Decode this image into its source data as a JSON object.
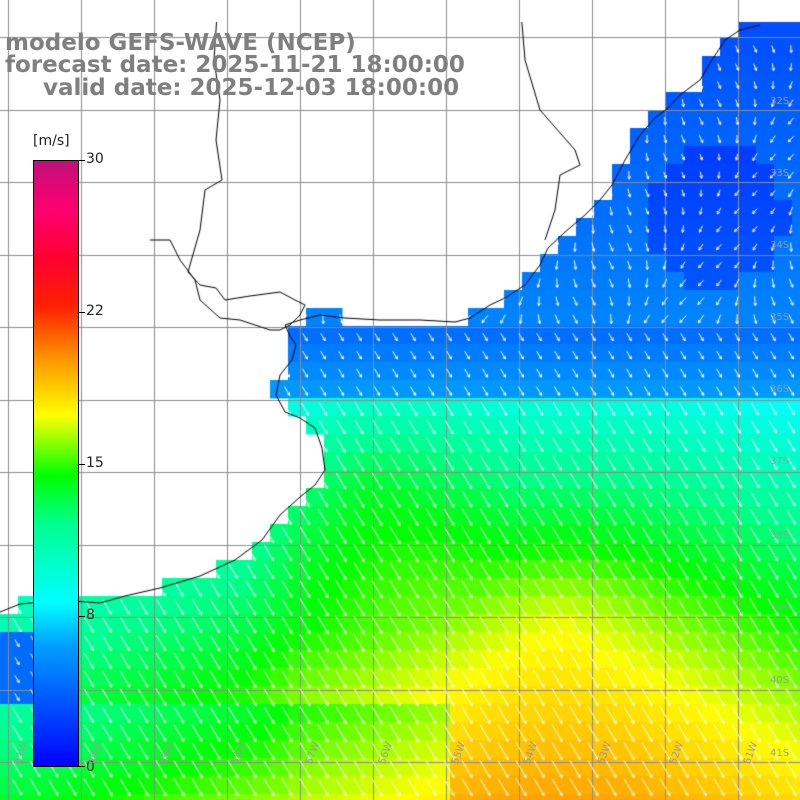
{
  "title": {
    "line1": "modelo GEFS-WAVE (NCEP)",
    "line2": "forecast date: 2025-11-21 18:00:00",
    "line3": "valid date: 2025-12-03 18:00:00"
  },
  "colorbar": {
    "unit": "[m/s]",
    "min": 0,
    "max": 30,
    "ticks": [
      "30",
      "22",
      "15",
      "8",
      "0"
    ]
  },
  "lat_labels": [
    "32S",
    "33S",
    "34S",
    "35S",
    "36S",
    "37S",
    "38S",
    "39S",
    "40S",
    "41S"
  ],
  "lon_labels": [
    "61W",
    "60W",
    "59W",
    "58W",
    "57W",
    "56W",
    "55W",
    "54W",
    "53W",
    "52W",
    "51W"
  ],
  "colors": {
    "land": "#ffffff",
    "coastline": "#000000",
    "grid": "#8c8c8c",
    "arrow": "#ffffff",
    "title": "#7f7f7f"
  },
  "wind_field": {
    "description_field": "10m wind speed (m/s), shaded, with direction arrows",
    "quantity": "wind speed",
    "units": "m/s",
    "lat_range": [
      -41.5,
      -31.5
    ],
    "lon_range": [
      -61.5,
      -50.5
    ]
  }
}
